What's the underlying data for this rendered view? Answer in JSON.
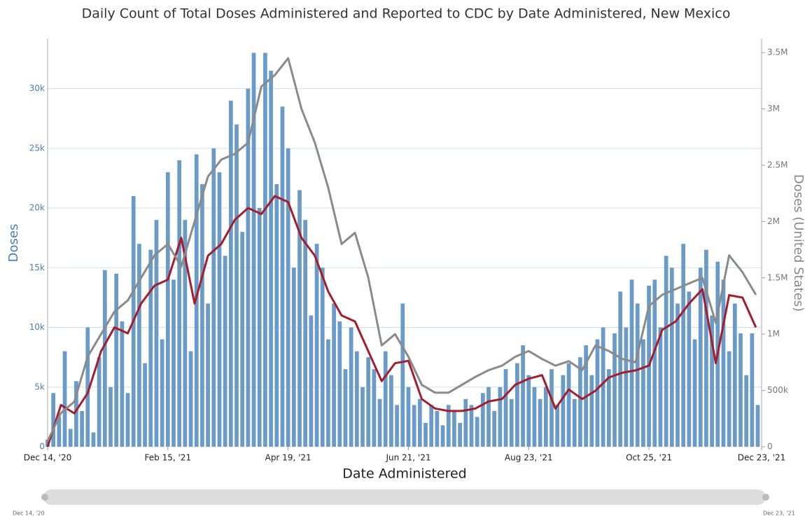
{
  "chart_data": {
    "type": "bar_line",
    "title": "Daily Count of Total Doses Administered and Reported to CDC by Date Administered, New Mexico",
    "x_label": "Date Administered",
    "y_label": "Doses",
    "y2_label": "Doses (United States)",
    "navigator_labels": [
      "Dec 14, '20",
      "Dec 23, '21"
    ],
    "xlim": [
      0,
      374
    ],
    "xticks": [
      {
        "value": 0,
        "label": "Dec 14, '20"
      },
      {
        "value": 63,
        "label": "Feb 15, '21"
      },
      {
        "value": 126,
        "label": "Apr 19, '21"
      },
      {
        "value": 189,
        "label": "Jun 21, '21"
      },
      {
        "value": 252,
        "label": "Aug 23, '21"
      },
      {
        "value": 315,
        "label": "Oct 25, '21"
      },
      {
        "value": 374,
        "label": "Dec 23, '21"
      }
    ],
    "ylim": [
      0,
      34200
    ],
    "yticks": [
      0,
      {
        "value": 5000,
        "label": "5k"
      },
      {
        "value": 10000,
        "label": "10k"
      },
      {
        "value": 15000,
        "label": "15k"
      },
      {
        "value": 20000,
        "label": "20k"
      },
      {
        "value": 25000,
        "label": "25k"
      },
      {
        "value": 30000,
        "label": "30k"
      }
    ],
    "y2lim": [
      0,
      3625000
    ],
    "y2ticks": [
      0,
      {
        "value": 500000,
        "label": "500k"
      },
      {
        "value": 1000000,
        "label": "1M"
      },
      {
        "value": 1500000,
        "label": "1.5M"
      },
      {
        "value": 2000000,
        "label": "2M"
      },
      {
        "value": 2500000,
        "label": "2.5M"
      },
      {
        "value": 3000000,
        "label": "3M"
      },
      {
        "value": 3500000,
        "label": "3.5M"
      }
    ],
    "grid": true,
    "series": [
      {
        "kind": "bar",
        "color": "#6a9bc8",
        "x": [
          0,
          3,
          6,
          9,
          12,
          15,
          18,
          21,
          24,
          27,
          30,
          33,
          36,
          39,
          42,
          45,
          48,
          51,
          54,
          57,
          60,
          63,
          66,
          69,
          72,
          75,
          78,
          81,
          84,
          87,
          90,
          93,
          96,
          99,
          102,
          105,
          108,
          111,
          114,
          117,
          120,
          123,
          126,
          129,
          132,
          135,
          138,
          141,
          144,
          147,
          150,
          153,
          156,
          159,
          162,
          165,
          168,
          171,
          174,
          177,
          180,
          183,
          186,
          189,
          192,
          195,
          198,
          201,
          204,
          207,
          210,
          213,
          216,
          219,
          222,
          225,
          228,
          231,
          234,
          237,
          240,
          243,
          246,
          249,
          252,
          255,
          258,
          261,
          264,
          267,
          270,
          273,
          276,
          279,
          282,
          285,
          288,
          291,
          294,
          297,
          300,
          303,
          306,
          309,
          312,
          315,
          318,
          321,
          324,
          327,
          330,
          333,
          336,
          339,
          342,
          345,
          348,
          351,
          354,
          357,
          360,
          363,
          366,
          369,
          372
        ],
        "values": [
          600,
          4500,
          2500,
          8000,
          1500,
          5500,
          3000,
          10000,
          1200,
          7500,
          14800,
          5000,
          14500,
          10500,
          4500,
          21000,
          17000,
          7000,
          16500,
          19000,
          9000,
          23000,
          14000,
          24000,
          19000,
          8000,
          24500,
          22000,
          12000,
          25000,
          23000,
          16000,
          29000,
          27000,
          18000,
          30000,
          33000,
          20000,
          33000,
          31500,
          22000,
          28500,
          25000,
          15000,
          21500,
          19000,
          11000,
          17000,
          15000,
          9000,
          12000,
          10500,
          6500,
          10000,
          8000,
          5000,
          7500,
          6500,
          4000,
          8000,
          6000,
          3500,
          12000,
          5000,
          3500,
          4000,
          2000,
          3500,
          3000,
          1800,
          3500,
          3000,
          2000,
          4000,
          3500,
          2500,
          4500,
          5000,
          3000,
          5000,
          6500,
          4000,
          7000,
          8500,
          6000,
          5000,
          4000,
          5000,
          6500,
          3500,
          6000,
          7000,
          4000,
          7500,
          8500,
          6000,
          9000,
          10000,
          6500,
          9500,
          13000,
          10000,
          14000,
          12000,
          9000,
          13500,
          14000,
          10000,
          16000,
          15000,
          12000,
          17000,
          13000,
          9000,
          15000,
          16500,
          11000,
          15500,
          14000,
          8000,
          12000,
          9500,
          6000,
          9500,
          3500
        ]
      },
      {
        "kind": "line",
        "color": "#a51c2b",
        "x": [
          0,
          7,
          14,
          21,
          28,
          35,
          42,
          49,
          56,
          63,
          70,
          77,
          84,
          91,
          98,
          105,
          112,
          119,
          126,
          133,
          140,
          147,
          154,
          161,
          168,
          175,
          182,
          189,
          196,
          203,
          210,
          217,
          224,
          231,
          238,
          245,
          252,
          259,
          266,
          273,
          280,
          287,
          294,
          301,
          308,
          315,
          322,
          329,
          336,
          343,
          350,
          357,
          364,
          371
        ],
        "values": [
          0,
          3500,
          2800,
          4500,
          8000,
          10000,
          9500,
          12000,
          13500,
          14000,
          17500,
          12000,
          16000,
          17000,
          19000,
          20000,
          19500,
          21000,
          20500,
          17500,
          16000,
          13000,
          11000,
          10500,
          8000,
          5500,
          7000,
          7200,
          4000,
          3200,
          3000,
          3000,
          3200,
          3800,
          4000,
          5200,
          5700,
          6000,
          3200,
          4800,
          4000,
          4700,
          5800,
          6200,
          6400,
          6800,
          9800,
          10500,
          12000,
          13200,
          7000,
          12700,
          12500,
          10000
        ]
      },
      {
        "kind": "line",
        "axis": "y2",
        "color": "#8a8a8a",
        "x": [
          0,
          7,
          14,
          21,
          28,
          35,
          42,
          49,
          56,
          63,
          70,
          77,
          84,
          91,
          98,
          105,
          112,
          119,
          126,
          133,
          140,
          147,
          154,
          161,
          168,
          175,
          182,
          189,
          196,
          203,
          210,
          217,
          224,
          231,
          238,
          245,
          252,
          259,
          266,
          273,
          280,
          287,
          294,
          301,
          308,
          315,
          322,
          329,
          336,
          343,
          350,
          357,
          364,
          371
        ],
        "values": [
          50000,
          300000,
          400000,
          800000,
          1000000,
          1200000,
          1300000,
          1500000,
          1700000,
          1800000,
          1600000,
          2000000,
          2400000,
          2550000,
          2600000,
          2700000,
          3200000,
          3300000,
          3450000,
          3000000,
          2700000,
          2300000,
          1800000,
          1900000,
          1500000,
          900000,
          1000000,
          800000,
          550000,
          480000,
          480000,
          550000,
          620000,
          680000,
          720000,
          800000,
          850000,
          780000,
          720000,
          760000,
          680000,
          900000,
          850000,
          780000,
          750000,
          1250000,
          1350000,
          1400000,
          1450000,
          1500000,
          1100000,
          1700000,
          1550000,
          1350000
        ]
      }
    ]
  }
}
